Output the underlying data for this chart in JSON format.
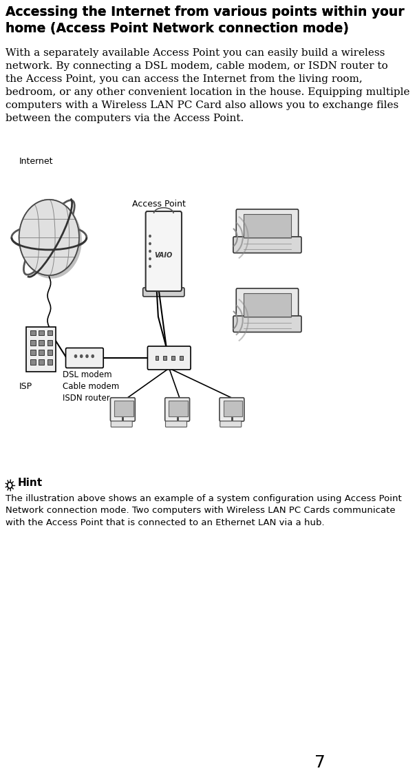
{
  "title": "Accessing the Internet from various points within your home (Access Point Network connection mode)",
  "body_text": "With a separately available Access Point you can easily build a wireless network. By connecting a DSL modem, cable modem, or ISDN router to the Access Point, you can access the Internet from the living room, bedroom, or any other convenient location in the house. Equipping multiple computers with a Wireless LAN PC Card also allows you to exchange files between the computers via the Access Point.",
  "hint_label": "Hint",
  "hint_text": "The illustration above shows an example of a system configuration using Access Point Network connection mode. Two computers with Wireless LAN PC Cards communicate with the Access Point that is connected to an Ethernet LAN via a hub.",
  "page_number": "7",
  "label_internet": "Internet",
  "label_isp": "ISP",
  "label_access_point": "Access Point",
  "label_dsl": "DSL modem\nCable modem\nISDN router",
  "bg_color": "#ffffff",
  "text_color": "#000000",
  "title_fontsize": 13.5,
  "body_fontsize": 11,
  "hint_fontsize": 10,
  "page_num_fontsize": 18
}
